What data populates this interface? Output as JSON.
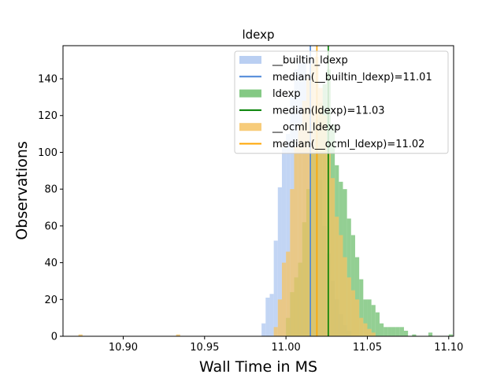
{
  "chart_data": {
    "type": "histogram",
    "title": "ldexp",
    "xlabel": "Wall Time in MS",
    "ylabel": "Observations",
    "xlim": [
      10.863,
      11.103
    ],
    "ylim": [
      0,
      158
    ],
    "xticks": [
      10.9,
      10.95,
      11.0,
      11.05,
      11.1
    ],
    "xtick_labels": [
      "10.90",
      "10.95",
      "11.00",
      "11.05",
      "11.10"
    ],
    "yticks": [
      0,
      20,
      40,
      60,
      80,
      100,
      120,
      140
    ],
    "ytick_labels": [
      "0",
      "20",
      "40",
      "60",
      "80",
      "100",
      "120",
      "140"
    ],
    "legend_position": "top-right",
    "series": [
      {
        "name": "__builtin_ldexp",
        "kind": "hist",
        "color": "#aec7f0",
        "bins": [
          {
            "x0": 10.985,
            "x1": 10.9875,
            "count": 7
          },
          {
            "x0": 10.9875,
            "x1": 10.99,
            "count": 21
          },
          {
            "x0": 10.99,
            "x1": 10.9925,
            "count": 23
          },
          {
            "x0": 10.9925,
            "x1": 10.995,
            "count": 52
          },
          {
            "x0": 10.995,
            "x1": 10.9975,
            "count": 81
          },
          {
            "x0": 10.9975,
            "x1": 11.0,
            "count": 103
          },
          {
            "x0": 11.0,
            "x1": 11.0025,
            "count": 110
          },
          {
            "x0": 11.0025,
            "x1": 11.005,
            "count": 130
          },
          {
            "x0": 11.005,
            "x1": 11.0075,
            "count": 145
          },
          {
            "x0": 11.0075,
            "x1": 11.01,
            "count": 150
          },
          {
            "x0": 11.01,
            "x1": 11.0125,
            "count": 153
          },
          {
            "x0": 11.0125,
            "x1": 11.015,
            "count": 140
          },
          {
            "x0": 11.015,
            "x1": 11.0175,
            "count": 120
          },
          {
            "x0": 11.0175,
            "x1": 11.02,
            "count": 100
          },
          {
            "x0": 11.02,
            "x1": 11.0225,
            "count": 85
          },
          {
            "x0": 11.0225,
            "x1": 11.025,
            "count": 60
          },
          {
            "x0": 11.025,
            "x1": 11.0275,
            "count": 45
          },
          {
            "x0": 11.0275,
            "x1": 11.03,
            "count": 30
          },
          {
            "x0": 11.03,
            "x1": 11.0325,
            "count": 20
          },
          {
            "x0": 11.0325,
            "x1": 11.035,
            "count": 12
          },
          {
            "x0": 11.035,
            "x1": 11.0375,
            "count": 6
          },
          {
            "x0": 11.0375,
            "x1": 11.04,
            "count": 3
          }
        ]
      },
      {
        "name": "ldexp",
        "kind": "hist",
        "color": "#6fbf6f",
        "bins": [
          {
            "x0": 11.0,
            "x1": 11.0025,
            "count": 10
          },
          {
            "x0": 11.0025,
            "x1": 11.005,
            "count": 24
          },
          {
            "x0": 11.005,
            "x1": 11.0075,
            "count": 32
          },
          {
            "x0": 11.0075,
            "x1": 11.01,
            "count": 40
          },
          {
            "x0": 11.01,
            "x1": 11.0125,
            "count": 62
          },
          {
            "x0": 11.0125,
            "x1": 11.015,
            "count": 80
          },
          {
            "x0": 11.015,
            "x1": 11.0175,
            "count": 100
          },
          {
            "x0": 11.0175,
            "x1": 11.02,
            "count": 118
          },
          {
            "x0": 11.02,
            "x1": 11.0225,
            "count": 127
          },
          {
            "x0": 11.0225,
            "x1": 11.025,
            "count": 137
          },
          {
            "x0": 11.025,
            "x1": 11.0275,
            "count": 145
          },
          {
            "x0": 11.0275,
            "x1": 11.03,
            "count": 115
          },
          {
            "x0": 11.03,
            "x1": 11.0325,
            "count": 93
          },
          {
            "x0": 11.0325,
            "x1": 11.035,
            "count": 84
          },
          {
            "x0": 11.035,
            "x1": 11.0375,
            "count": 80
          },
          {
            "x0": 11.0375,
            "x1": 11.04,
            "count": 64
          },
          {
            "x0": 11.04,
            "x1": 11.0425,
            "count": 55
          },
          {
            "x0": 11.0425,
            "x1": 11.045,
            "count": 43
          },
          {
            "x0": 11.045,
            "x1": 11.0475,
            "count": 31
          },
          {
            "x0": 11.0475,
            "x1": 11.05,
            "count": 20
          },
          {
            "x0": 11.05,
            "x1": 11.0525,
            "count": 20
          },
          {
            "x0": 11.0525,
            "x1": 11.055,
            "count": 17
          },
          {
            "x0": 11.055,
            "x1": 11.0575,
            "count": 13
          },
          {
            "x0": 11.0575,
            "x1": 11.06,
            "count": 7
          },
          {
            "x0": 11.06,
            "x1": 11.0625,
            "count": 5
          },
          {
            "x0": 11.0625,
            "x1": 11.065,
            "count": 5
          },
          {
            "x0": 11.065,
            "x1": 11.0675,
            "count": 5
          },
          {
            "x0": 11.0675,
            "x1": 11.07,
            "count": 5
          },
          {
            "x0": 11.07,
            "x1": 11.0725,
            "count": 5
          },
          {
            "x0": 11.0725,
            "x1": 11.075,
            "count": 3
          },
          {
            "x0": 11.0775,
            "x1": 11.08,
            "count": 1
          },
          {
            "x0": 11.0875,
            "x1": 11.09,
            "count": 2
          },
          {
            "x0": 11.1,
            "x1": 11.1025,
            "count": 1
          }
        ]
      },
      {
        "name": "__ocml_ldexp",
        "kind": "hist",
        "color": "#f6c363",
        "bins": [
          {
            "x0": 10.8725,
            "x1": 10.875,
            "count": 1
          },
          {
            "x0": 10.9325,
            "x1": 10.935,
            "count": 1
          },
          {
            "x0": 10.9925,
            "x1": 10.995,
            "count": 5
          },
          {
            "x0": 10.995,
            "x1": 10.9975,
            "count": 20
          },
          {
            "x0": 10.9975,
            "x1": 11.0,
            "count": 40
          },
          {
            "x0": 11.0,
            "x1": 11.0025,
            "count": 46
          },
          {
            "x0": 11.0025,
            "x1": 11.005,
            "count": 80
          },
          {
            "x0": 11.005,
            "x1": 11.0075,
            "count": 103
          },
          {
            "x0": 11.0075,
            "x1": 11.01,
            "count": 115
          },
          {
            "x0": 11.01,
            "x1": 11.0125,
            "count": 128
          },
          {
            "x0": 11.0125,
            "x1": 11.015,
            "count": 140
          },
          {
            "x0": 11.015,
            "x1": 11.0175,
            "count": 148
          },
          {
            "x0": 11.0175,
            "x1": 11.02,
            "count": 152
          },
          {
            "x0": 11.02,
            "x1": 11.0225,
            "count": 135
          },
          {
            "x0": 11.0225,
            "x1": 11.025,
            "count": 120
          },
          {
            "x0": 11.025,
            "x1": 11.0275,
            "count": 100
          },
          {
            "x0": 11.0275,
            "x1": 11.03,
            "count": 86
          },
          {
            "x0": 11.03,
            "x1": 11.0325,
            "count": 65
          },
          {
            "x0": 11.0325,
            "x1": 11.035,
            "count": 55
          },
          {
            "x0": 11.035,
            "x1": 11.0375,
            "count": 43
          },
          {
            "x0": 11.0375,
            "x1": 11.04,
            "count": 32
          },
          {
            "x0": 11.04,
            "x1": 11.0425,
            "count": 25
          },
          {
            "x0": 11.0425,
            "x1": 11.045,
            "count": 20
          },
          {
            "x0": 11.045,
            "x1": 11.0475,
            "count": 10
          },
          {
            "x0": 11.0475,
            "x1": 11.05,
            "count": 7
          },
          {
            "x0": 11.05,
            "x1": 11.0525,
            "count": 4
          },
          {
            "x0": 11.0525,
            "x1": 11.055,
            "count": 2
          }
        ]
      },
      {
        "name": "median(__builtin_ldexp)=11.01",
        "kind": "vline",
        "color": "#4a86d8",
        "x": 11.015
      },
      {
        "name": "median(ldexp)=11.03",
        "kind": "vline",
        "color": "#008000",
        "x": 11.026
      },
      {
        "name": "median(__ocml_ldexp)=11.02",
        "kind": "vline",
        "color": "#ffa500",
        "x": 11.019
      }
    ],
    "legend": [
      {
        "label": "__builtin_ldexp",
        "kind": "patch",
        "color": "#aec7f0"
      },
      {
        "label": "median(__builtin_ldexp)=11.01",
        "kind": "line",
        "color": "#4a86d8"
      },
      {
        "label": "ldexp",
        "kind": "patch",
        "color": "#6fbf6f"
      },
      {
        "label": "median(ldexp)=11.03",
        "kind": "line",
        "color": "#008000"
      },
      {
        "label": "__ocml_ldexp",
        "kind": "patch",
        "color": "#f6c363"
      },
      {
        "label": "median(__ocml_ldexp)=11.02",
        "kind": "line",
        "color": "#ffa500"
      }
    ]
  }
}
